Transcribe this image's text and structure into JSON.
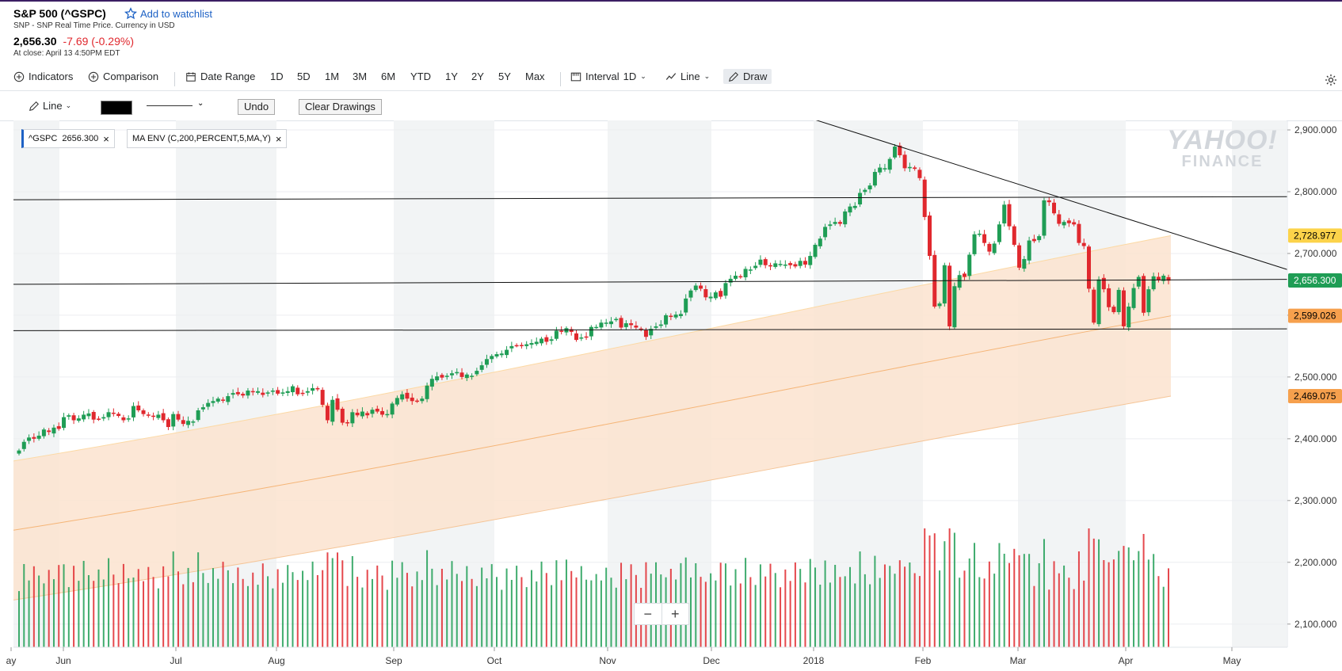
{
  "header": {
    "title": "S&P 500 (^GSPC)",
    "watchlist_label": "Add to watchlist",
    "subtitle": "SNP - SNP Real Time Price. Currency in USD",
    "price": "2,656.30",
    "change": "-7.69 (-0.29%)",
    "close_note": "At close: April 13 4:50PM EDT",
    "change_color": "#e0282e"
  },
  "toolbar": {
    "indicators": "Indicators",
    "comparison": "Comparison",
    "date_range": "Date Range",
    "ranges": [
      "1D",
      "5D",
      "1M",
      "3M",
      "6M",
      "YTD",
      "1Y",
      "2Y",
      "5Y",
      "Max"
    ],
    "interval_label": "Interval",
    "interval_value": "1D",
    "chart_type": "Line",
    "draw": "Draw"
  },
  "drawbar": {
    "tool": "Line",
    "color": "#000000",
    "undo": "Undo",
    "clear": "Clear Drawings"
  },
  "legend": {
    "series_tag": "^GSPC",
    "series_value": "2656.300",
    "indicator_tag": "MA ENV (C,200,PERCENT,5,MA,Y)"
  },
  "zoom": {
    "minus": "−",
    "plus": "+"
  },
  "watermark": {
    "line1": "YAHOO!",
    "line2": "FINANCE"
  },
  "chart_data": {
    "type": "candlestick",
    "y_axis": {
      "ticks": [
        "2,900.000",
        "2,800.000",
        "2,700.000",
        "2,600.000",
        "2,500.000",
        "2,400.000",
        "2,300.000",
        "2,200.000",
        "2,100.000"
      ],
      "range": [
        2086,
        2931
      ]
    },
    "x_axis": {
      "labels": [
        "ay",
        "Jun",
        "Jul",
        "Aug",
        "Sep",
        "Oct",
        "Nov",
        "Dec",
        "2018",
        "Feb",
        "Mar",
        "Apr",
        "May"
      ]
    },
    "price_labels": [
      {
        "value": 2728.977,
        "text": "2,728.977",
        "color": "#fcd34a",
        "text_color": "#000000"
      },
      {
        "value": 2656.3,
        "text": "2,656.300",
        "color": "#1f9d55",
        "text_color": "#ffffff"
      },
      {
        "value": 2599.026,
        "text": "2,599.026",
        "color": "#f6a04d",
        "text_color": "#000000"
      },
      {
        "value": 2469.075,
        "text": "2,469.075",
        "color": "#f6a04d",
        "text_color": "#000000"
      }
    ],
    "close_series": [
      2381,
      2395,
      2402,
      2400,
      2405,
      2415,
      2411,
      2418,
      2416,
      2435,
      2438,
      2430,
      2433,
      2439,
      2441,
      2431,
      2432,
      2435,
      2443,
      2442,
      2437,
      2430,
      2433,
      2453,
      2446,
      2440,
      2439,
      2436,
      2439,
      2430,
      2419,
      2440,
      2431,
      2424,
      2429,
      2428,
      2446,
      2451,
      2458,
      2461,
      2465,
      2462,
      2469,
      2474,
      2472,
      2470,
      2478,
      2476,
      2477,
      2471,
      2475,
      2478,
      2473,
      2475,
      2477,
      2485,
      2472,
      2473,
      2477,
      2482,
      2480,
      2455,
      2430,
      2463,
      2447,
      2426,
      2425,
      2443,
      2438,
      2444,
      2438,
      2447,
      2444,
      2439,
      2440,
      2457,
      2466,
      2472,
      2465,
      2461,
      2461,
      2465,
      2486,
      2497,
      2501,
      2499,
      2502,
      2506,
      2508,
      2500,
      2504,
      2502,
      2510,
      2519,
      2529,
      2534,
      2537,
      2538,
      2544,
      2550,
      2551,
      2550,
      2553,
      2555,
      2557,
      2562,
      2557,
      2561,
      2575,
      2573,
      2579,
      2573,
      2560,
      2564,
      2565,
      2581,
      2581,
      2588,
      2588,
      2590,
      2594,
      2580,
      2587,
      2584,
      2580,
      2578,
      2565,
      2578,
      2582,
      2585,
      2600,
      2598,
      2601,
      2602,
      2627,
      2640,
      2648,
      2643,
      2629,
      2630,
      2637,
      2630,
      2652,
      2659,
      2664,
      2663,
      2675,
      2674,
      2680,
      2690,
      2681,
      2679,
      2684,
      2683,
      2682,
      2681,
      2679,
      2688,
      2682,
      2696,
      2714,
      2724,
      2743,
      2747,
      2751,
      2748,
      2768,
      2776,
      2777,
      2798,
      2803,
      2810,
      2832,
      2839,
      2838,
      2853,
      2873,
      2859,
      2838,
      2840,
      2837,
      2822,
      2759,
      2696,
      2614,
      2619,
      2681,
      2582,
      2647,
      2665,
      2662,
      2698,
      2731,
      2732,
      2717,
      2703,
      2716,
      2747,
      2779,
      2744,
      2714,
      2677,
      2691,
      2721,
      2720,
      2728,
      2786,
      2783,
      2765,
      2748,
      2751,
      2749,
      2747,
      2717,
      2712,
      2643,
      2588,
      2658,
      2642,
      2613,
      2605,
      2641,
      2582,
      2614,
      2644,
      2662,
      2604,
      2642,
      2663,
      2657,
      2664,
      2656
    ],
    "ma_envelope": {
      "period": 200,
      "percent": 5,
      "upper_start": 2364,
      "upper_end": 2729,
      "mid_start": 2252,
      "mid_end": 2599,
      "lower_start": 2139,
      "lower_end": 2469
    },
    "drawn_lines": [
      {
        "from": 2787,
        "to": 2792
      },
      {
        "from": 2650,
        "to": 2658
      },
      {
        "from": 2575,
        "to": 2578
      },
      {
        "from_value": 2931,
        "to_value": 2674,
        "kind": "trendline"
      }
    ],
    "volume_note": "volume bars in lower panel",
    "up_color": "#1f9d55",
    "down_color": "#e0282e"
  }
}
